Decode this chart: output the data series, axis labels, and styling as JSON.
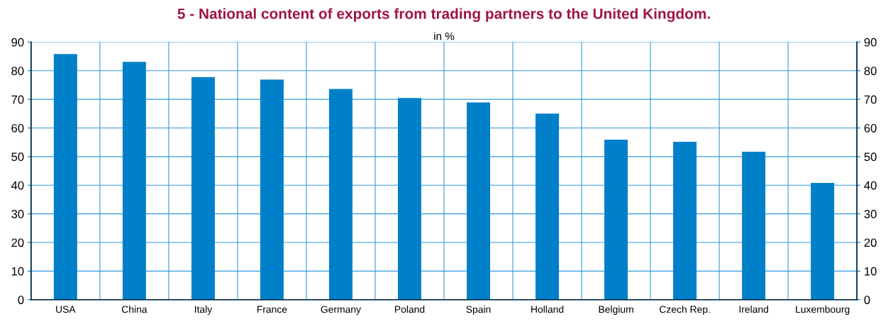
{
  "chart_data": {
    "type": "bar",
    "title": "5 - National content of exports from trading partners to the United Kingdom.",
    "subtitle": "in %",
    "categories": [
      "USA",
      "China",
      "Italy",
      "France",
      "Germany",
      "Poland",
      "Spain",
      "Holland",
      "Belgium",
      "Czech Rep.",
      "Ireland",
      "Luxembourg"
    ],
    "values": [
      85.8,
      83.1,
      77.8,
      76.9,
      73.6,
      70.5,
      68.9,
      65.0,
      55.9,
      55.2,
      51.7,
      40.8
    ],
    "color": "#0080c8",
    "ylim": [
      0,
      90
    ],
    "yticks": [
      0,
      10,
      20,
      30,
      40,
      50,
      60,
      70,
      80,
      90
    ],
    "y2lim": [
      0,
      90
    ],
    "y2ticks": [
      0,
      10,
      20,
      30,
      40,
      50,
      60,
      70,
      80,
      90
    ],
    "grid": true
  }
}
